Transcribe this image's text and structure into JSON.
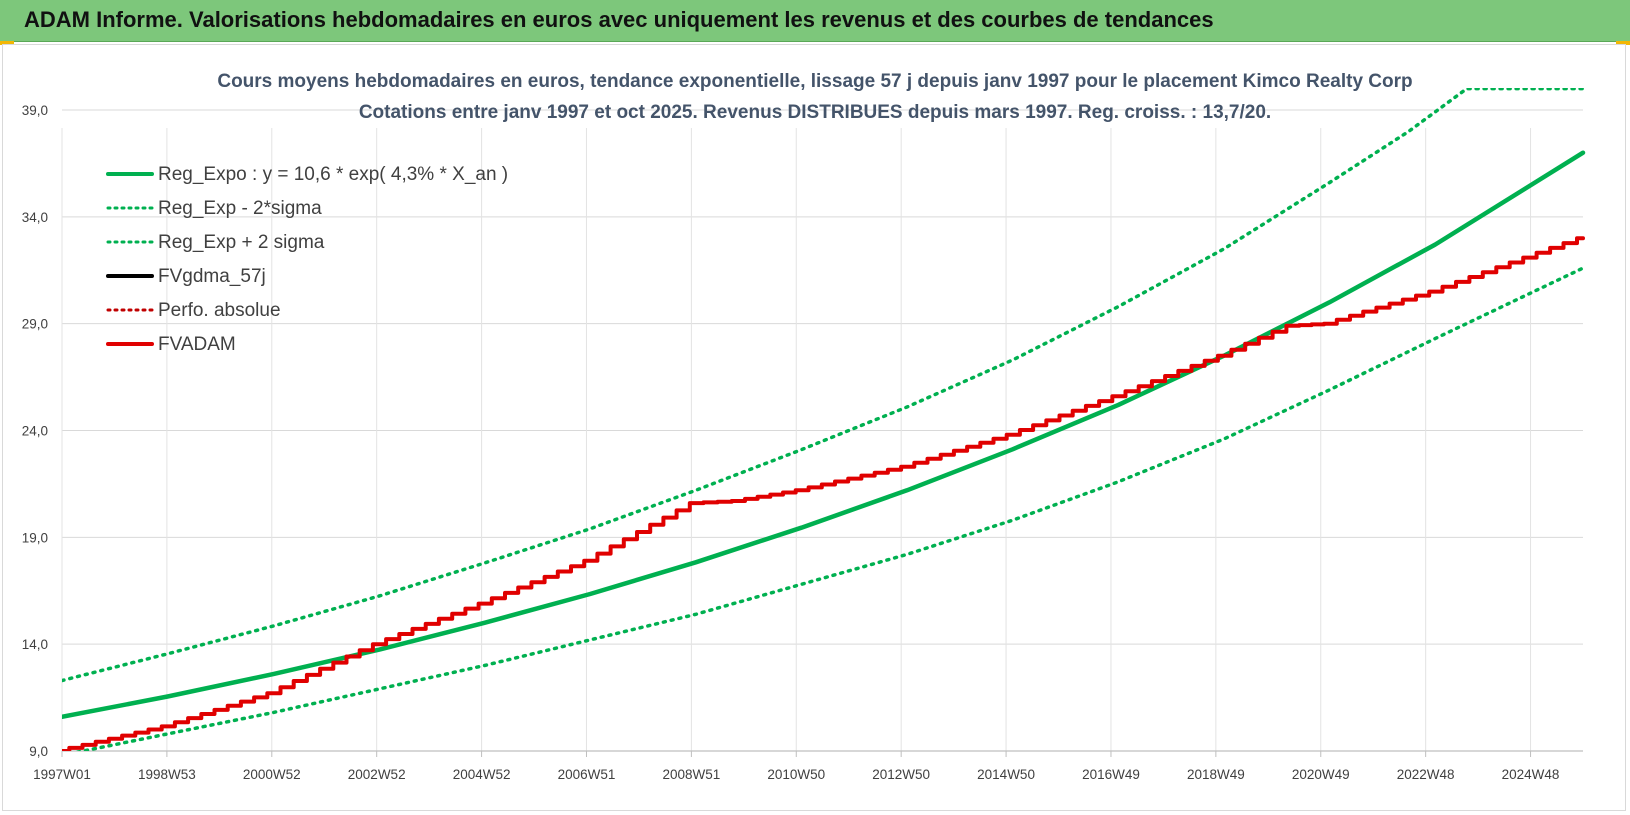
{
  "header": {
    "title": "ADAM Informe. Valorisations hebdomadaires en euros avec uniquement les revenus et des courbes de tendances"
  },
  "chart_data": {
    "type": "line",
    "title": "Cours moyens hebdomadaires en euros, tendance exponentielle, lissage 57 j depuis janv 1997 pour le placement Kimco Realty Corp",
    "subtitle": "Cotations entre janv 1997 et oct 2025. Revenus DISTRIBUES depuis mars 1997. Reg. croiss. : 13,7/20.",
    "xlabel": "",
    "ylabel": "",
    "x_ticks": [
      "1997W01",
      "1998W53",
      "2000W52",
      "2002W52",
      "2004W52",
      "2006W51",
      "2008W51",
      "2010W50",
      "2012W50",
      "2014W50",
      "2016W49",
      "2018W49",
      "2020W49",
      "2022W48",
      "2024W48"
    ],
    "y_ticks": [
      "9,0",
      "14,0",
      "19,0",
      "24,0",
      "29,0",
      "34,0",
      "39,0"
    ],
    "ylim": [
      9.0,
      39.0
    ],
    "xlim": [
      1997.0,
      2025.8
    ],
    "grid": true,
    "legend_position": "top-left",
    "series": [
      {
        "name": "Reg_Expo : y = 10,6 * exp( 4,3% *  X_an )",
        "color": "#00b050",
        "style": "solid",
        "x": [
          1997.0,
          1999.0,
          2001.0,
          2003.0,
          2005.0,
          2007.0,
          2009.0,
          2011.0,
          2013.0,
          2015.0,
          2017.0,
          2019.0,
          2021.0,
          2023.0,
          2025.8
        ],
        "y": [
          10.6,
          11.55,
          12.6,
          13.74,
          15.0,
          16.35,
          17.83,
          19.45,
          21.2,
          23.12,
          25.2,
          27.5,
          30.0,
          32.7,
          37.0
        ]
      },
      {
        "name": "Reg_Exp - 2*sigma",
        "color": "#00b050",
        "style": "dotted",
        "x": [
          1997.0,
          1999.0,
          2001.0,
          2003.0,
          2005.0,
          2007.0,
          2009.0,
          2011.0,
          2013.0,
          2015.0,
          2017.0,
          2019.0,
          2021.0,
          2023.0,
          2025.8
        ],
        "y": [
          8.8,
          9.8,
          10.8,
          11.9,
          13.0,
          14.2,
          15.4,
          16.8,
          18.2,
          19.8,
          21.6,
          23.6,
          25.9,
          28.3,
          31.6
        ]
      },
      {
        "name": "Reg_Exp + 2 sigma",
        "color": "#00b050",
        "style": "dotted",
        "x": [
          1997.0,
          1999.0,
          2001.0,
          2003.0,
          2005.0,
          2007.0,
          2009.0,
          2011.0,
          2013.0,
          2015.0,
          2017.0,
          2019.0,
          2021.0,
          2022.5,
          2023.6,
          2025.8
        ],
        "y": [
          12.3,
          13.55,
          14.85,
          16.25,
          17.8,
          19.4,
          21.2,
          23.1,
          25.1,
          27.3,
          29.8,
          32.5,
          35.6,
          38.0,
          40.0,
          40.0
        ]
      },
      {
        "name": "FVgdma_57j",
        "color": "#000000",
        "style": "solid",
        "x": [],
        "y": []
      },
      {
        "name": "Perfo. absolue",
        "color": "#c00000",
        "style": "dotted",
        "x": [],
        "y": []
      },
      {
        "name": "FVADAM",
        "color": "#e00000",
        "style": "solid",
        "x": [
          1997.0,
          1999.0,
          2001.0,
          2003.0,
          2005.0,
          2007.0,
          2009.0,
          2009.8,
          2011.0,
          2013.0,
          2015.0,
          2017.0,
          2019.0,
          2020.3,
          2021.0,
          2023.0,
          2025.8
        ],
        "y": [
          9.0,
          10.15,
          11.7,
          14.0,
          15.9,
          17.9,
          20.6,
          20.7,
          21.2,
          22.3,
          23.8,
          25.6,
          27.5,
          28.9,
          29.0,
          30.5,
          33.0
        ]
      }
    ]
  }
}
